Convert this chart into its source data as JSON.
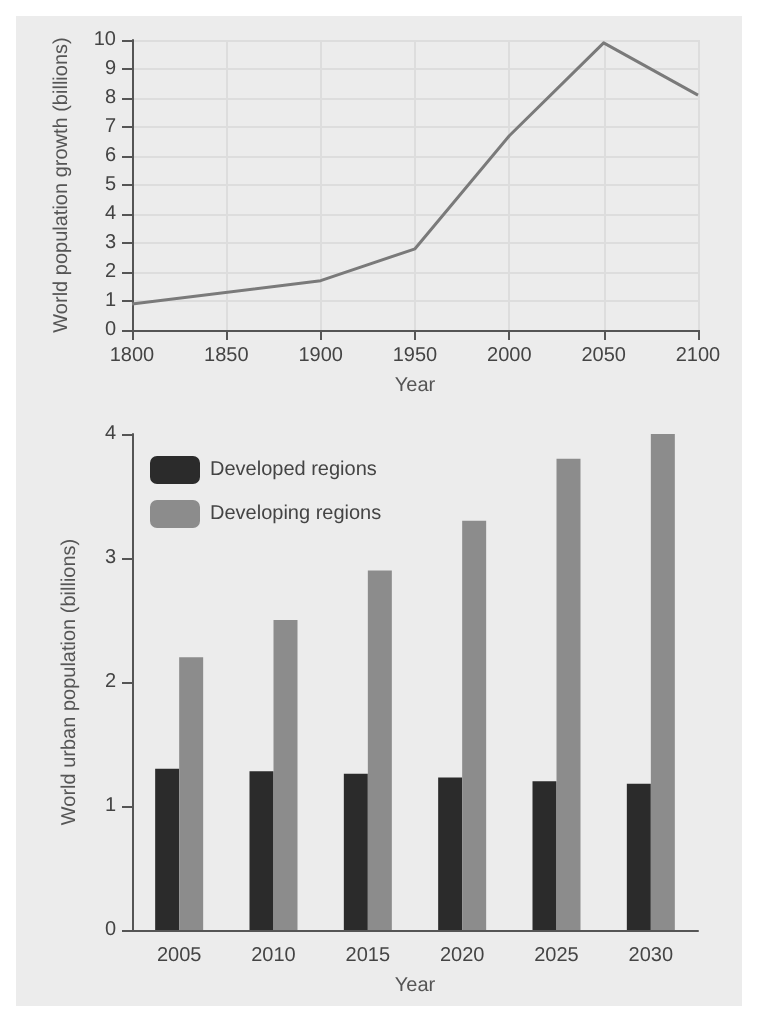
{
  "chart_data": [
    {
      "type": "line",
      "xlabel": "Year",
      "ylabel": "World population growth (billions)",
      "x": [
        1800,
        1900,
        1950,
        2000,
        2050,
        2100
      ],
      "series": [
        {
          "color": "#7a7a7a",
          "values": [
            0.9,
            1.7,
            2.8,
            6.7,
            9.9,
            8.1
          ]
        }
      ],
      "xlim": [
        1800,
        2100
      ],
      "xticks": [
        1800,
        1850,
        1900,
        1950,
        2000,
        2050,
        2100
      ],
      "ylim": [
        0,
        10
      ],
      "yticks": [
        0,
        1,
        2,
        3,
        4,
        5,
        6,
        7,
        8,
        9,
        10
      ],
      "grid": true,
      "legend": false,
      "marker": "none"
    },
    {
      "type": "bar",
      "xlabel": "Year",
      "ylabel": "World urban population (billions)",
      "categories": [
        "2005",
        "2010",
        "2015",
        "2020",
        "2025",
        "2030"
      ],
      "series": [
        {
          "name": "Developed regions",
          "color": "#2b2b2b",
          "values": [
            1.3,
            1.28,
            1.26,
            1.23,
            1.2,
            1.18
          ]
        },
        {
          "name": "Developing regions",
          "color": "#8c8c8c",
          "values": [
            2.2,
            2.5,
            2.9,
            3.3,
            3.8,
            4.0
          ]
        }
      ],
      "ylim": [
        0,
        4
      ],
      "yticks": [
        0,
        1,
        2,
        3,
        4
      ],
      "grid": false,
      "legend": "top left"
    }
  ]
}
